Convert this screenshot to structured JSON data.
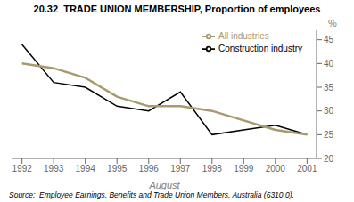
{
  "chart_data": {
    "type": "line",
    "title": "20.32  TRADE UNION MEMBERSHIP, Proportion of employees",
    "xlabel": "August",
    "ylabel": "%",
    "annotations": [
      "Source:  Employee Earnings, Benefits and Trade Union Members, Australia (6310.0)."
    ],
    "x": [
      1992,
      1993,
      1994,
      1995,
      1996,
      1997,
      1998,
      1999,
      2000,
      2001
    ],
    "xlim": [
      1991.7,
      2001.3
    ],
    "xticks": [
      1992,
      1993,
      1994,
      1995,
      1996,
      1997,
      1998,
      1999,
      2000,
      2001
    ],
    "ylim": [
      20,
      47
    ],
    "yticks": [
      20,
      25,
      30,
      35,
      40,
      45
    ],
    "series": [
      {
        "name": "Construction industry",
        "color": "#000000",
        "values": [
          44,
          36,
          35,
          31,
          30,
          34,
          25,
          26,
          27,
          25
        ]
      },
      {
        "name": "All industries",
        "color": "#a89a6e",
        "values": [
          40,
          39,
          37,
          33,
          31,
          31,
          30,
          28,
          26,
          25
        ]
      }
    ],
    "legend": "upper right",
    "grid": false
  }
}
